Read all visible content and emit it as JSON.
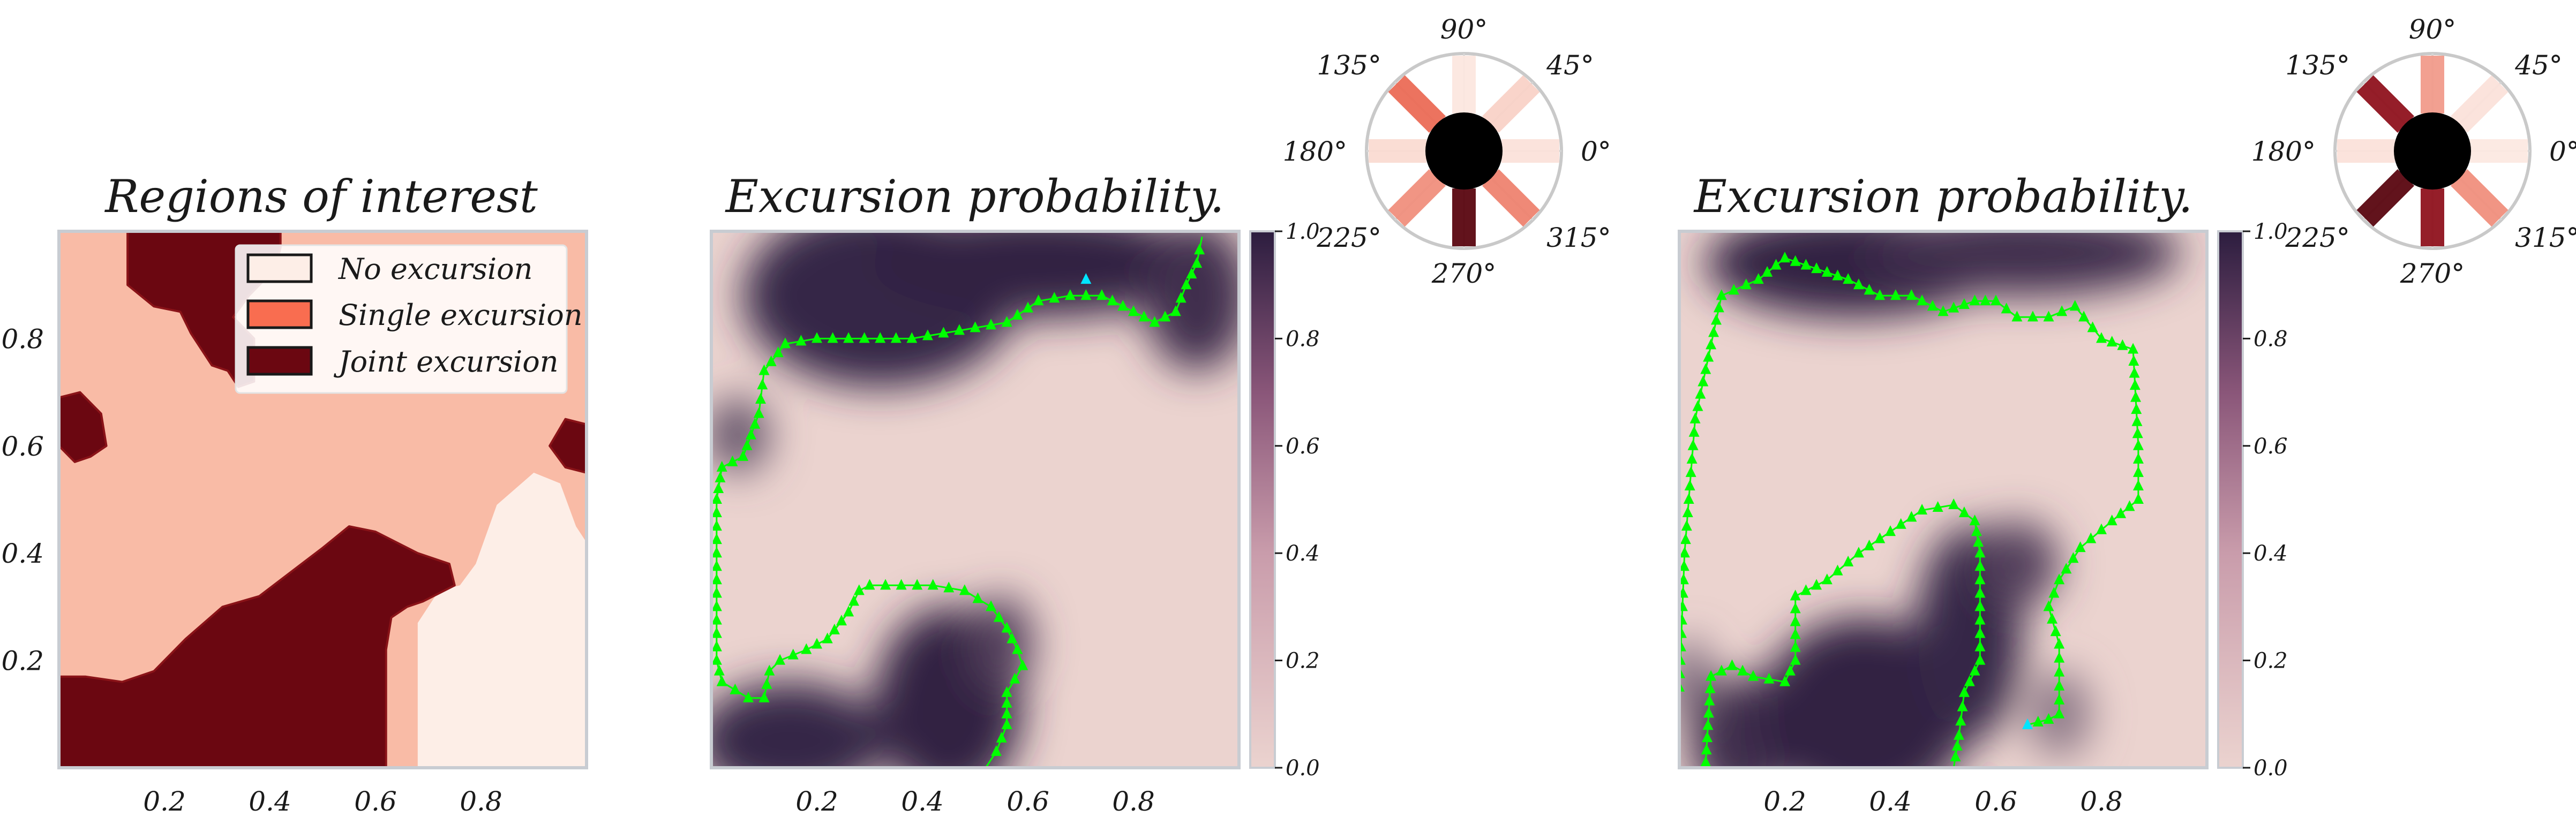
{
  "colors": {
    "no_excursion": "#fdeee7",
    "single_excursion": "#f9bba6",
    "joint_excursion": "#6b0711",
    "prob_low": "#ebd3cf",
    "prob_high": "#2c1d3f",
    "contour": "#00ff00",
    "point": "#00e5ff",
    "frame": "#c8ccd2"
  },
  "chart_data": [
    {
      "type": "heatmap",
      "title": "Regions of interest",
      "xticks": [
        "0.2",
        "0.4",
        "0.6",
        "0.8"
      ],
      "yticks": [
        "0.2",
        "0.4",
        "0.6",
        "0.8"
      ],
      "xlim": [
        0,
        1
      ],
      "ylim": [
        0,
        1
      ],
      "legend": {
        "placement": "upper-right",
        "entries": [
          {
            "label": "No excursion",
            "color": "#fdeee7"
          },
          {
            "label": "Single excursion",
            "color": "#f96d50"
          },
          {
            "label": "Joint excursion",
            "color": "#6b0711"
          }
        ]
      },
      "regions": {
        "joint_top": [
          [
            0.13,
            1.0
          ],
          [
            0.13,
            0.9
          ],
          [
            0.18,
            0.86
          ],
          [
            0.23,
            0.85
          ],
          [
            0.25,
            0.81
          ],
          [
            0.29,
            0.75
          ],
          [
            0.32,
            0.74
          ],
          [
            0.34,
            0.71
          ],
          [
            0.37,
            0.72
          ],
          [
            0.37,
            0.8
          ],
          [
            0.33,
            0.84
          ],
          [
            0.36,
            0.88
          ],
          [
            0.41,
            0.93
          ],
          [
            0.42,
            0.97
          ],
          [
            0.42,
            1.0
          ]
        ],
        "joint_left": [
          [
            0.0,
            0.69
          ],
          [
            0.04,
            0.7
          ],
          [
            0.08,
            0.66
          ],
          [
            0.09,
            0.6
          ],
          [
            0.06,
            0.58
          ],
          [
            0.03,
            0.57
          ],
          [
            0.0,
            0.6
          ]
        ],
        "joint_right": [
          [
            1.0,
            0.64
          ],
          [
            0.96,
            0.65
          ],
          [
            0.93,
            0.6
          ],
          [
            0.96,
            0.56
          ],
          [
            1.0,
            0.55
          ]
        ],
        "joint_bottom": [
          [
            0.0,
            0.0
          ],
          [
            0.0,
            0.17
          ],
          [
            0.05,
            0.17
          ],
          [
            0.12,
            0.16
          ],
          [
            0.18,
            0.18
          ],
          [
            0.24,
            0.24
          ],
          [
            0.31,
            0.3
          ],
          [
            0.38,
            0.32
          ],
          [
            0.46,
            0.38
          ],
          [
            0.5,
            0.41
          ],
          [
            0.55,
            0.45
          ],
          [
            0.6,
            0.44
          ],
          [
            0.68,
            0.4
          ],
          [
            0.74,
            0.38
          ],
          [
            0.75,
            0.34
          ],
          [
            0.69,
            0.31
          ],
          [
            0.66,
            0.3
          ],
          [
            0.63,
            0.28
          ],
          [
            0.62,
            0.22
          ],
          [
            0.62,
            0.0
          ]
        ],
        "none": [
          [
            0.68,
            0.0
          ],
          [
            0.68,
            0.27
          ],
          [
            0.72,
            0.33
          ],
          [
            0.76,
            0.34
          ],
          [
            0.79,
            0.38
          ],
          [
            0.83,
            0.49
          ],
          [
            0.9,
            0.55
          ],
          [
            0.95,
            0.53
          ],
          [
            0.98,
            0.45
          ],
          [
            1.0,
            0.42
          ],
          [
            1.0,
            0.0
          ]
        ]
      }
    },
    {
      "type": "heatmap",
      "title": "Excursion probability.",
      "xticks": [
        "0.2",
        "0.4",
        "0.6",
        "0.8"
      ],
      "xlim": [
        0,
        1
      ],
      "ylim": [
        0,
        1
      ],
      "colorbar": {
        "min": 0.0,
        "max": 1.0,
        "ticks": [
          "0.0",
          "0.2",
          "0.4",
          "0.6",
          "0.8",
          "1.0"
        ]
      },
      "dark_regions": [
        {
          "cx": 0.32,
          "cy": 0.88,
          "rx": 0.26,
          "ry": 0.17,
          "p": 0.95
        },
        {
          "cx": 0.62,
          "cy": 0.94,
          "rx": 0.32,
          "ry": 0.1,
          "p": 0.97
        },
        {
          "cx": 0.92,
          "cy": 0.88,
          "rx": 0.1,
          "ry": 0.14,
          "p": 0.9
        },
        {
          "cx": 0.05,
          "cy": 0.62,
          "rx": 0.06,
          "ry": 0.07,
          "p": 0.7
        },
        {
          "cx": 0.15,
          "cy": 0.05,
          "rx": 0.18,
          "ry": 0.11,
          "p": 0.95
        },
        {
          "cx": 0.45,
          "cy": 0.12,
          "rx": 0.14,
          "ry": 0.18,
          "p": 0.97
        },
        {
          "cx": 0.55,
          "cy": 0.23,
          "rx": 0.06,
          "ry": 0.09,
          "p": 0.8
        }
      ],
      "contours": [
        [
          [
            0.01,
            0.5
          ],
          [
            0.02,
            0.56
          ],
          [
            0.06,
            0.58
          ],
          [
            0.09,
            0.66
          ],
          [
            0.1,
            0.74
          ],
          [
            0.14,
            0.79
          ],
          [
            0.2,
            0.8
          ],
          [
            0.26,
            0.8
          ],
          [
            0.32,
            0.8
          ],
          [
            0.38,
            0.8
          ],
          [
            0.44,
            0.81
          ],
          [
            0.5,
            0.82
          ],
          [
            0.56,
            0.83
          ],
          [
            0.62,
            0.87
          ],
          [
            0.68,
            0.88
          ],
          [
            0.74,
            0.88
          ],
          [
            0.8,
            0.85
          ],
          [
            0.84,
            0.83
          ],
          [
            0.88,
            0.85
          ],
          [
            0.9,
            0.9
          ],
          [
            0.92,
            0.94
          ],
          [
            0.93,
            0.99
          ]
        ],
        [
          [
            0.01,
            0.5
          ],
          [
            0.01,
            0.35
          ],
          [
            0.01,
            0.2
          ],
          [
            0.02,
            0.16
          ],
          [
            0.07,
            0.13
          ],
          [
            0.1,
            0.13
          ],
          [
            0.11,
            0.18
          ],
          [
            0.13,
            0.2
          ],
          [
            0.18,
            0.22
          ],
          [
            0.22,
            0.24
          ],
          [
            0.26,
            0.29
          ],
          [
            0.28,
            0.33
          ],
          [
            0.3,
            0.34
          ],
          [
            0.36,
            0.34
          ],
          [
            0.42,
            0.34
          ],
          [
            0.48,
            0.33
          ],
          [
            0.53,
            0.3
          ],
          [
            0.56,
            0.26
          ],
          [
            0.58,
            0.22
          ],
          [
            0.59,
            0.19
          ],
          [
            0.56,
            0.14
          ],
          [
            0.56,
            0.08
          ],
          [
            0.54,
            0.03
          ],
          [
            0.52,
            0.0
          ]
        ]
      ],
      "points": [
        [
          0.71,
          0.91
        ]
      ],
      "polar": {
        "angle_labels": [
          "0°",
          "45°",
          "90°",
          "135°",
          "180°",
          "225°",
          "270°",
          "315°"
        ],
        "bars": [
          {
            "angle": 0,
            "level": 0.05
          },
          {
            "angle": 45,
            "level": 0.12
          },
          {
            "angle": 90,
            "level": 0.03
          },
          {
            "angle": 135,
            "level": 0.55
          },
          {
            "angle": 180,
            "level": 0.08
          },
          {
            "angle": 225,
            "level": 0.4
          },
          {
            "angle": 270,
            "level": 1.0
          },
          {
            "angle": 315,
            "level": 0.45
          }
        ]
      }
    },
    {
      "type": "heatmap",
      "title": "Excursion probability.",
      "xticks": [
        "0.2",
        "0.4",
        "0.6",
        "0.8"
      ],
      "xlim": [
        0,
        1
      ],
      "ylim": [
        0,
        1
      ],
      "colorbar": {
        "min": 0.0,
        "max": 1.0,
        "ticks": [
          "0.0",
          "0.2",
          "0.4",
          "0.6",
          "0.8",
          "1.0"
        ]
      },
      "dark_regions": [
        {
          "cx": 0.33,
          "cy": 0.94,
          "rx": 0.28,
          "ry": 0.1,
          "p": 0.97
        },
        {
          "cx": 0.65,
          "cy": 0.96,
          "rx": 0.3,
          "ry": 0.08,
          "p": 0.9
        },
        {
          "cx": 0.12,
          "cy": 0.05,
          "rx": 0.1,
          "ry": 0.12,
          "p": 0.9
        },
        {
          "cx": 0.35,
          "cy": 0.1,
          "rx": 0.2,
          "ry": 0.18,
          "p": 0.97
        },
        {
          "cx": 0.55,
          "cy": 0.25,
          "rx": 0.1,
          "ry": 0.2,
          "p": 0.95
        },
        {
          "cx": 0.64,
          "cy": 0.38,
          "rx": 0.08,
          "ry": 0.08,
          "p": 0.8
        },
        {
          "cx": 0.72,
          "cy": 0.1,
          "rx": 0.06,
          "ry": 0.08,
          "p": 0.5
        },
        {
          "cx": 0.02,
          "cy": 0.16,
          "rx": 0.04,
          "ry": 0.08,
          "p": 0.6
        }
      ],
      "contours": [
        [
          [
            0.0,
            0.15
          ],
          [
            0.01,
            0.4
          ],
          [
            0.03,
            0.65
          ],
          [
            0.08,
            0.88
          ],
          [
            0.15,
            0.91
          ],
          [
            0.2,
            0.95
          ],
          [
            0.26,
            0.93
          ],
          [
            0.32,
            0.91
          ],
          [
            0.38,
            0.88
          ],
          [
            0.44,
            0.88
          ],
          [
            0.5,
            0.85
          ],
          [
            0.56,
            0.87
          ],
          [
            0.6,
            0.87
          ],
          [
            0.64,
            0.84
          ],
          [
            0.7,
            0.84
          ],
          [
            0.75,
            0.86
          ],
          [
            0.8,
            0.8
          ],
          [
            0.86,
            0.78
          ],
          [
            0.87,
            0.6
          ],
          [
            0.87,
            0.5
          ],
          [
            0.82,
            0.46
          ],
          [
            0.76,
            0.41
          ],
          [
            0.72,
            0.35
          ],
          [
            0.7,
            0.3
          ],
          [
            0.72,
            0.23
          ],
          [
            0.72,
            0.1
          ],
          [
            0.7,
            0.09
          ],
          [
            0.66,
            0.08
          ]
        ],
        [
          [
            0.05,
            0.01
          ],
          [
            0.06,
            0.17
          ],
          [
            0.1,
            0.19
          ],
          [
            0.14,
            0.17
          ],
          [
            0.2,
            0.16
          ],
          [
            0.22,
            0.2
          ],
          [
            0.22,
            0.32
          ],
          [
            0.28,
            0.35
          ],
          [
            0.34,
            0.4
          ],
          [
            0.4,
            0.44
          ],
          [
            0.46,
            0.48
          ],
          [
            0.52,
            0.49
          ],
          [
            0.56,
            0.46
          ],
          [
            0.57,
            0.4
          ],
          [
            0.57,
            0.3
          ],
          [
            0.57,
            0.2
          ],
          [
            0.54,
            0.14
          ],
          [
            0.53,
            0.06
          ],
          [
            0.52,
            0.0
          ]
        ]
      ],
      "points": [
        [
          0.66,
          0.08
        ]
      ],
      "polar": {
        "angle_labels": [
          "0°",
          "45°",
          "90°",
          "135°",
          "180°",
          "225°",
          "270°",
          "315°"
        ],
        "bars": [
          {
            "angle": 0,
            "level": 0.02
          },
          {
            "angle": 45,
            "level": 0.05
          },
          {
            "angle": 90,
            "level": 0.35
          },
          {
            "angle": 135,
            "level": 0.85
          },
          {
            "angle": 180,
            "level": 0.05
          },
          {
            "angle": 225,
            "level": 1.0
          },
          {
            "angle": 270,
            "level": 0.85
          },
          {
            "angle": 315,
            "level": 0.4
          }
        ]
      }
    }
  ]
}
